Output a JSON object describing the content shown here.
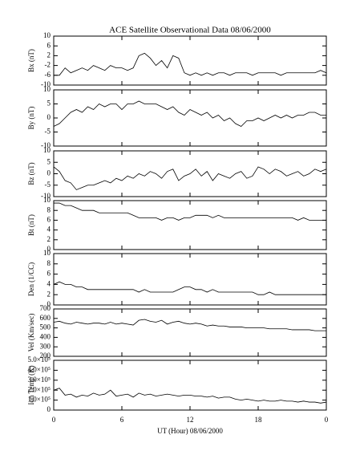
{
  "title": "ACE Satellite Observational Data   08/06/2000",
  "chart_data": [
    {
      "type": "line",
      "ylabel": "Bx (nT)",
      "ylim": [
        -10,
        10
      ],
      "yticks": [
        -10,
        -6,
        -2,
        2,
        6,
        10
      ],
      "xlim": [
        0,
        24
      ],
      "xticks": [
        0,
        6,
        12,
        18,
        24
      ],
      "color": "#000000",
      "x": [
        0,
        0.5,
        1,
        1.5,
        2,
        2.5,
        3,
        3.5,
        4,
        4.5,
        5,
        5.5,
        6,
        6.5,
        7,
        7.5,
        8,
        8.5,
        9,
        9.5,
        10,
        10.5,
        11,
        11.5,
        12,
        12.5,
        13,
        13.5,
        14,
        14.5,
        15,
        15.5,
        16,
        16.5,
        17,
        17.5,
        18,
        18.5,
        19,
        19.5,
        20,
        20.5,
        21,
        21.5,
        22,
        22.5,
        23,
        23.5,
        24
      ],
      "values": [
        -6,
        -6,
        -3,
        -5,
        -4,
        -3,
        -4,
        -2,
        -3,
        -4,
        -2,
        -3,
        -3,
        -4,
        -3,
        2,
        3,
        1,
        -2,
        0,
        -3,
        2,
        1,
        -5,
        -6,
        -5,
        -6,
        -5,
        -6,
        -5,
        -5,
        -6,
        -5,
        -5,
        -5,
        -6,
        -5,
        -5,
        -5,
        -5,
        -6,
        -5,
        -5,
        -5,
        -5,
        -5,
        -5,
        -4,
        -5
      ]
    },
    {
      "type": "line",
      "ylabel": "By (nT)",
      "ylim": [
        -10,
        10
      ],
      "yticks": [
        -10,
        -5,
        0,
        5,
        10
      ],
      "xlim": [
        0,
        24
      ],
      "xticks": [
        0,
        6,
        12,
        18,
        24
      ],
      "color": "#000000",
      "x": [
        0,
        0.5,
        1,
        1.5,
        2,
        2.5,
        3,
        3.5,
        4,
        4.5,
        5,
        5.5,
        6,
        6.5,
        7,
        7.5,
        8,
        8.5,
        9,
        9.5,
        10,
        10.5,
        11,
        11.5,
        12,
        12.5,
        13,
        13.5,
        14,
        14.5,
        15,
        15.5,
        16,
        16.5,
        17,
        17.5,
        18,
        18.5,
        19,
        19.5,
        20,
        20.5,
        21,
        21.5,
        22,
        22.5,
        23,
        23.5,
        24
      ],
      "values": [
        -3,
        -2,
        0,
        2,
        3,
        2,
        4,
        3,
        5,
        4,
        5,
        5,
        3,
        5,
        5,
        6,
        5,
        5,
        5,
        4,
        3,
        4,
        2,
        1,
        3,
        2,
        1,
        2,
        0,
        1,
        -1,
        0,
        -2,
        -3,
        -1,
        -1,
        0,
        -1,
        0,
        1,
        0,
        1,
        0,
        1,
        1,
        2,
        2,
        1,
        1
      ]
    },
    {
      "type": "line",
      "ylabel": "Bz (nT)",
      "ylim": [
        -10,
        10
      ],
      "yticks": [
        -10,
        -5,
        0,
        5,
        10
      ],
      "xlim": [
        0,
        24
      ],
      "xticks": [
        0,
        6,
        12,
        18,
        24
      ],
      "color": "#000000",
      "x": [
        0,
        0.5,
        1,
        1.5,
        2,
        2.5,
        3,
        3.5,
        4,
        4.5,
        5,
        5.5,
        6,
        6.5,
        7,
        7.5,
        8,
        8.5,
        9,
        9.5,
        10,
        10.5,
        11,
        11.5,
        12,
        12.5,
        13,
        13.5,
        14,
        14.5,
        15,
        15.5,
        16,
        16.5,
        17,
        17.5,
        18,
        18.5,
        19,
        19.5,
        20,
        20.5,
        21,
        21.5,
        22,
        22.5,
        23,
        23.5,
        24
      ],
      "values": [
        3,
        1,
        -3,
        -4,
        -7,
        -6,
        -5,
        -5,
        -4,
        -3,
        -4,
        -2,
        -3,
        -1,
        -2,
        0,
        -1,
        1,
        0,
        -2,
        1,
        2,
        -3,
        -1,
        0,
        2,
        -1,
        1,
        -3,
        0,
        -1,
        -2,
        0,
        1,
        -2,
        -1,
        3,
        2,
        0,
        2,
        1,
        -1,
        0,
        1,
        -1,
        0,
        2,
        1,
        2
      ]
    },
    {
      "type": "line",
      "ylabel": "Bt (nT)",
      "ylim": [
        0,
        10
      ],
      "yticks": [
        0,
        2,
        4,
        6,
        8,
        10
      ],
      "xlim": [
        0,
        24
      ],
      "xticks": [
        0,
        6,
        12,
        18,
        24
      ],
      "color": "#000000",
      "x": [
        0,
        0.5,
        1,
        1.5,
        2,
        2.5,
        3,
        3.5,
        4,
        4.5,
        5,
        5.5,
        6,
        6.5,
        7,
        7.5,
        8,
        8.5,
        9,
        9.5,
        10,
        10.5,
        11,
        11.5,
        12,
        12.5,
        13,
        13.5,
        14,
        14.5,
        15,
        15.5,
        16,
        16.5,
        17,
        17.5,
        18,
        18.5,
        19,
        19.5,
        20,
        20.5,
        21,
        21.5,
        22,
        22.5,
        23,
        23.5,
        24
      ],
      "values": [
        9.5,
        9.5,
        9,
        9,
        8.5,
        8,
        8,
        8,
        7.5,
        7.5,
        7.5,
        7.5,
        7.5,
        7.5,
        7,
        6.5,
        6.5,
        6.5,
        6.5,
        6,
        6.5,
        6.5,
        6,
        6.5,
        6.5,
        7,
        7,
        7,
        6.5,
        7,
        6.5,
        6.5,
        6.5,
        6.5,
        6.5,
        6.5,
        6.5,
        6.5,
        6.5,
        6.5,
        6.5,
        6.5,
        6.5,
        6,
        6.5,
        6,
        6,
        6,
        6
      ]
    },
    {
      "type": "line",
      "ylabel": "Den (1/CC)",
      "ylim": [
        0,
        10
      ],
      "yticks": [
        0,
        2,
        4,
        6,
        8,
        10
      ],
      "xlim": [
        0,
        24
      ],
      "xticks": [
        0,
        6,
        12,
        18,
        24
      ],
      "color": "#000000",
      "x": [
        0,
        0.5,
        1,
        1.5,
        2,
        2.5,
        3,
        3.5,
        4,
        4.5,
        5,
        5.5,
        6,
        6.5,
        7,
        7.5,
        8,
        8.5,
        9,
        9.5,
        10,
        10.5,
        11,
        11.5,
        12,
        12.5,
        13,
        13.5,
        14,
        14.5,
        15,
        15.5,
        16,
        16.5,
        17,
        17.5,
        18,
        18.5,
        19,
        19.5,
        20,
        20.5,
        21,
        21.5,
        22,
        22.5,
        23,
        23.5,
        24
      ],
      "values": [
        4,
        4.5,
        4,
        4,
        3.5,
        3.5,
        3,
        3,
        3,
        3,
        3,
        3,
        3,
        3,
        3,
        2.5,
        3,
        2.5,
        2.5,
        2.5,
        2.5,
        2.5,
        3,
        3.5,
        3.5,
        3,
        3,
        2.5,
        3,
        2.5,
        2.5,
        2.5,
        2.5,
        2.5,
        2.5,
        2.5,
        2,
        2,
        2.5,
        2,
        2,
        2,
        2,
        2,
        2,
        2,
        2,
        2,
        2
      ]
    },
    {
      "type": "line",
      "ylabel": "Vel (Km/sec)",
      "ylim": [
        200,
        700
      ],
      "yticks": [
        200,
        300,
        400,
        500,
        600,
        700
      ],
      "xlim": [
        0,
        24
      ],
      "xticks": [
        0,
        6,
        12,
        18,
        24
      ],
      "color": "#000000",
      "x": [
        0,
        0.5,
        1,
        1.5,
        2,
        2.5,
        3,
        3.5,
        4,
        4.5,
        5,
        5.5,
        6,
        6.5,
        7,
        7.5,
        8,
        8.5,
        9,
        9.5,
        10,
        10.5,
        11,
        11.5,
        12,
        12.5,
        13,
        13.5,
        14,
        14.5,
        15,
        15.5,
        16,
        16.5,
        17,
        17.5,
        18,
        18.5,
        19,
        19.5,
        20,
        20.5,
        21,
        21.5,
        22,
        22.5,
        23,
        23.5,
        24
      ],
      "values": [
        560,
        570,
        550,
        540,
        560,
        550,
        540,
        550,
        550,
        540,
        560,
        540,
        550,
        540,
        530,
        580,
        590,
        570,
        560,
        580,
        540,
        560,
        570,
        550,
        540,
        550,
        540,
        520,
        530,
        520,
        520,
        510,
        510,
        510,
        500,
        500,
        500,
        500,
        490,
        490,
        490,
        490,
        480,
        480,
        480,
        480,
        470,
        470,
        470
      ]
    },
    {
      "type": "line",
      "ylabel": "Ion Temp (K)",
      "xlabel": "UT (Hour)  08/06/2000",
      "ylim": [
        0,
        500000
      ],
      "yticks": [
        0,
        {
          "value": 100000,
          "label": "1.0×10⁵"
        },
        {
          "value": 200000,
          "label": "2.0×10⁵"
        },
        {
          "value": 300000,
          "label": "3.0×10⁵"
        },
        {
          "value": 400000,
          "label": "4.0×10⁵"
        },
        {
          "value": 500000,
          "label": "5.0×10⁵"
        }
      ],
      "xlim": [
        0,
        24
      ],
      "xticks": [
        0,
        6,
        12,
        18,
        {
          "value": 24,
          "label": "0"
        }
      ],
      "color": "#000000",
      "x": [
        0,
        0.5,
        1,
        1.5,
        2,
        2.5,
        3,
        3.5,
        4,
        4.5,
        5,
        5.5,
        6,
        6.5,
        7,
        7.5,
        8,
        8.5,
        9,
        9.5,
        10,
        10.5,
        11,
        11.5,
        12,
        12.5,
        13,
        13.5,
        14,
        14.5,
        15,
        15.5,
        16,
        16.5,
        17,
        17.5,
        18,
        18.5,
        19,
        19.5,
        20,
        20.5,
        21,
        21.5,
        22,
        22.5,
        23,
        23.5,
        24
      ],
      "values": [
        200000,
        220000,
        150000,
        160000,
        130000,
        150000,
        140000,
        170000,
        150000,
        160000,
        200000,
        140000,
        150000,
        160000,
        130000,
        170000,
        150000,
        160000,
        140000,
        150000,
        160000,
        150000,
        140000,
        150000,
        150000,
        140000,
        140000,
        130000,
        140000,
        120000,
        130000,
        130000,
        110000,
        100000,
        110000,
        100000,
        90000,
        100000,
        90000,
        90000,
        100000,
        90000,
        90000,
        80000,
        90000,
        80000,
        80000,
        70000,
        80000
      ]
    }
  ]
}
